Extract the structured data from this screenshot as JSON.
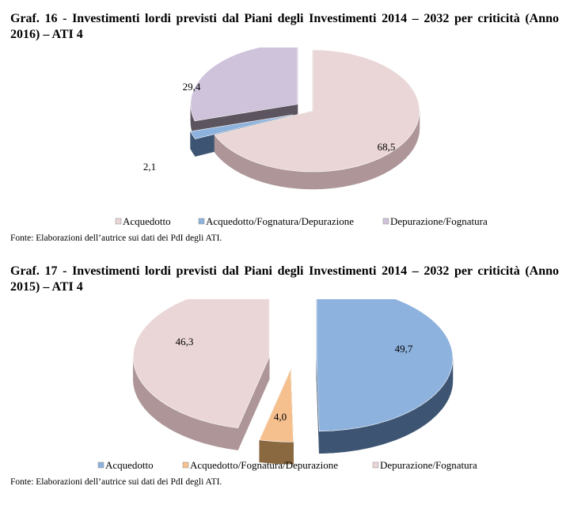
{
  "figures": [
    {
      "title": "Graf.  16 - Investimenti lordi previsti dal Piani degli Investimenti 2014 – 2032 per criticità (Anno 2016) – ATI 4",
      "source": "Fonte: Elaborazioni dell’autrice sui dati dei PdI degli ATI."
    },
    {
      "title": "Graf.  17 - Investimenti lordi previsti dal Piani degli Investimenti 2014 – 2032 per criticità (Anno 2015) – ATI 4",
      "source": "Fonte: Elaborazioni dell’autrice sui dati dei PdI degli ATI."
    }
  ],
  "chart_data": [
    {
      "type": "pie",
      "style": "3d-exploded",
      "categories": [
        "Acquedotto",
        "Acquedotto/Fognatura/Depurazione",
        "Depurazione/Fognatura"
      ],
      "values": [
        68.5,
        2.1,
        29.4
      ],
      "value_labels": [
        "68,5",
        "2,1",
        "29,4"
      ],
      "colors": [
        "#EAD6D6",
        "#8EB2DE",
        "#CFC2DB"
      ],
      "side_colors": [
        "#AE9698",
        "#3D5573",
        "#5C5560"
      ],
      "legend_placement": "bottom"
    },
    {
      "type": "pie",
      "style": "3d-exploded",
      "categories": [
        "Acquedotto",
        "Acquedotto/Fognatura/Depurazione",
        "Depurazione/Fognatura"
      ],
      "values": [
        49.7,
        4.0,
        46.3
      ],
      "value_labels": [
        "49,7",
        "4,0",
        "46,3"
      ],
      "colors": [
        "#8EB2DE",
        "#F5C08E",
        "#EAD6D6"
      ],
      "side_colors": [
        "#3D5573",
        "#8A6840",
        "#AE9698"
      ],
      "legend_placement": "bottom"
    }
  ]
}
